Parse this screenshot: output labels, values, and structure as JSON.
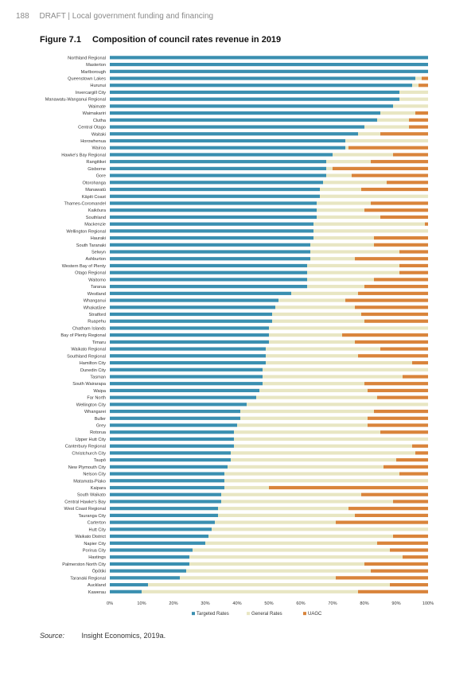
{
  "header": {
    "page_number": "188",
    "running_title": "DRAFT | Local government funding and financing"
  },
  "figure": {
    "number": "Figure 7.1",
    "title": "Composition of council rates revenue in 2019"
  },
  "source": {
    "label": "Source:",
    "text": "Insight Economics, 2019a."
  },
  "chart_data": {
    "type": "bar",
    "orientation": "horizontal",
    "stacked": "100%",
    "xlim": [
      0,
      100
    ],
    "xticks": [
      "0%",
      "10%",
      "20%",
      "30%",
      "40%",
      "50%",
      "60%",
      "70%",
      "80%",
      "90%",
      "100%"
    ],
    "legend_position": "bottom",
    "grid": false,
    "categories": [
      "Northland Regional",
      "Masterton",
      "Marlborough",
      "Queenstown Lakes",
      "Hurunui",
      "Invercargill City",
      "Manawatu-Wanganui Regional",
      "Waimate",
      "Waimakariri",
      "Clutha",
      "Central Otago",
      "Waitaki",
      "Horowhenua",
      "Wairoa",
      "Hawke's Bay Regional",
      "Rangitikei",
      "Gisborne",
      "Gore",
      "Otorohanga",
      "Manawatū",
      "Kāpiti Coast",
      "Thames-Coromandel",
      "Kaikōura",
      "Southland",
      "Mackenzie",
      "Wellington Regional",
      "Hauraki",
      "South Taranaki",
      "Selwyn",
      "Ashburton",
      "Western Bay of Plenty",
      "Otago Regional",
      "Waitomo",
      "Tararua",
      "Westland",
      "Whanganui",
      "Whakatāne",
      "Stratford",
      "Ruapehu",
      "Chatham Islands",
      "Bay of Plenty Regional",
      "Timaru",
      "Waikato Regional",
      "Southland Regional",
      "Hamilton City",
      "Dunedin City",
      "Tasman",
      "South Wairarapa",
      "Waipa",
      "Far North",
      "Wellington City",
      "Whangarei",
      "Buller",
      "Grey",
      "Rotorua",
      "Upper Hutt City",
      "Canterbury Regional",
      "Christchurch City",
      "Taupō",
      "New Plymouth City",
      "Nelson City",
      "Matamata-Piako",
      "Kaipara",
      "South Waikato",
      "Central Hawke's Bay",
      "West Coast Regional",
      "Tauranga City",
      "Carterton",
      "Hutt City",
      "Waikato District",
      "Napier City",
      "Porirua City",
      "Hastings",
      "Palmerston North City",
      "Ōpōtiki",
      "Taranaki Regional",
      "Auckland",
      "Kawerau"
    ],
    "series": [
      {
        "name": "Targeted Rates",
        "color": "#3a8fb0",
        "values": [
          100,
          100,
          100,
          96,
          95,
          91,
          91,
          89,
          85,
          84,
          80,
          78,
          74,
          74,
          70,
          68,
          68,
          68,
          67,
          66,
          66,
          65,
          65,
          65,
          64,
          64,
          64,
          63,
          63,
          63,
          62,
          62,
          62,
          62,
          57,
          53,
          52,
          51,
          51,
          50,
          50,
          50,
          49,
          49,
          49,
          48,
          48,
          48,
          47,
          46,
          43,
          41,
          41,
          40,
          39,
          39,
          39,
          38,
          38,
          37,
          36,
          36,
          36,
          35,
          35,
          34,
          34,
          33,
          32,
          31,
          30,
          26,
          25,
          25,
          24,
          22,
          12,
          10
        ]
      },
      {
        "name": "General Rates",
        "color": "#e8e6c3",
        "values": [
          0,
          0,
          0,
          2,
          2,
          9,
          9,
          11,
          11,
          10,
          14,
          7,
          26,
          1,
          19,
          14,
          2,
          8,
          20,
          13,
          34,
          17,
          15,
          20,
          35,
          36,
          19,
          20,
          28,
          14,
          29,
          29,
          21,
          18,
          21,
          21,
          25,
          28,
          29,
          50,
          23,
          27,
          36,
          29,
          46,
          52,
          44,
          32,
          34,
          38,
          57,
          42,
          40,
          41,
          46,
          61,
          56,
          58,
          52,
          49,
          55,
          64,
          14,
          44,
          54,
          41,
          43,
          38,
          68,
          58,
          54,
          62,
          67,
          55,
          58,
          49,
          76,
          68
        ]
      },
      {
        "name": "UAGC",
        "color": "#d9843b",
        "values": [
          0,
          0,
          0,
          2,
          3,
          0,
          0,
          0,
          4,
          6,
          6,
          15,
          0,
          25,
          11,
          18,
          30,
          24,
          13,
          21,
          0,
          18,
          20,
          15,
          1,
          0,
          17,
          17,
          9,
          23,
          9,
          9,
          17,
          20,
          22,
          26,
          23,
          21,
          20,
          0,
          27,
          23,
          15,
          22,
          5,
          0,
          8,
          20,
          19,
          16,
          0,
          17,
          19,
          19,
          15,
          0,
          5,
          4,
          10,
          14,
          9,
          0,
          50,
          21,
          11,
          25,
          23,
          29,
          0,
          11,
          16,
          12,
          8,
          20,
          18,
          29,
          12,
          22
        ]
      }
    ]
  }
}
